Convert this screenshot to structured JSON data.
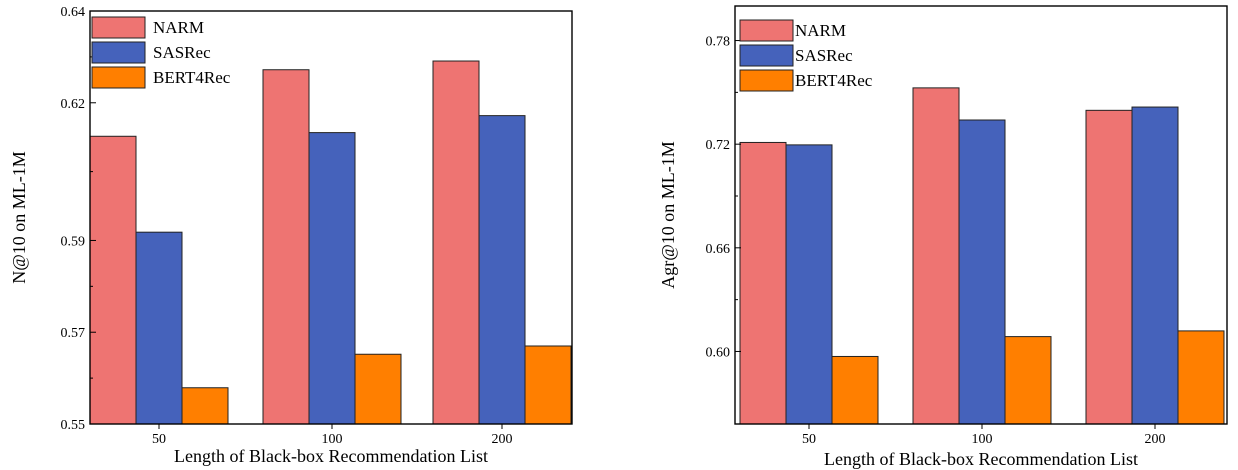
{
  "chart_data": [
    {
      "type": "bar",
      "categories": [
        "50",
        "100",
        "200"
      ],
      "series": [
        {
          "name": "NARM",
          "values": [
            0.6127,
            0.6272,
            0.6291
          ],
          "color": "#ee7472"
        },
        {
          "name": "SASRec",
          "values": [
            0.5918,
            0.6135,
            0.6172
          ],
          "color": "#4562bb"
        },
        {
          "name": "BERT4Rec",
          "values": [
            0.5579,
            0.5652,
            0.567
          ],
          "color": "#ff7f00"
        }
      ],
      "xlabel": "Length of Black-box Recommendation List",
      "ylabel": "N@10 on ML-1M",
      "ylim": [
        0.55,
        0.64
      ],
      "yticks": [
        "0.55",
        "0.57",
        "0.59",
        "0.62",
        "0.64"
      ],
      "ytick_values": [
        0.55,
        0.57,
        0.59,
        0.62,
        0.64
      ],
      "legend": "top-left",
      "grid": false
    },
    {
      "type": "bar",
      "categories": [
        "50",
        "100",
        "200"
      ],
      "series": [
        {
          "name": "NARM",
          "values": [
            0.721,
            0.7526,
            0.7396
          ],
          "color": "#ee7472"
        },
        {
          "name": "SASRec",
          "values": [
            0.7196,
            0.734,
            0.7415
          ],
          "color": "#4562bb"
        },
        {
          "name": "BERT4Rec",
          "values": [
            0.5971,
            0.6086,
            0.6119
          ],
          "color": "#ff7f00"
        }
      ],
      "xlabel": "Length of Black-box Recommendation List",
      "ylabel": "Agr@10 on ML-1M",
      "ylim": [
        0.558,
        0.8
      ],
      "yticks": [
        "0.60",
        "0.66",
        "0.72",
        "0.78"
      ],
      "ytick_values": [
        0.6,
        0.66,
        0.72,
        0.78
      ],
      "legend": "top-left",
      "grid": false
    }
  ]
}
